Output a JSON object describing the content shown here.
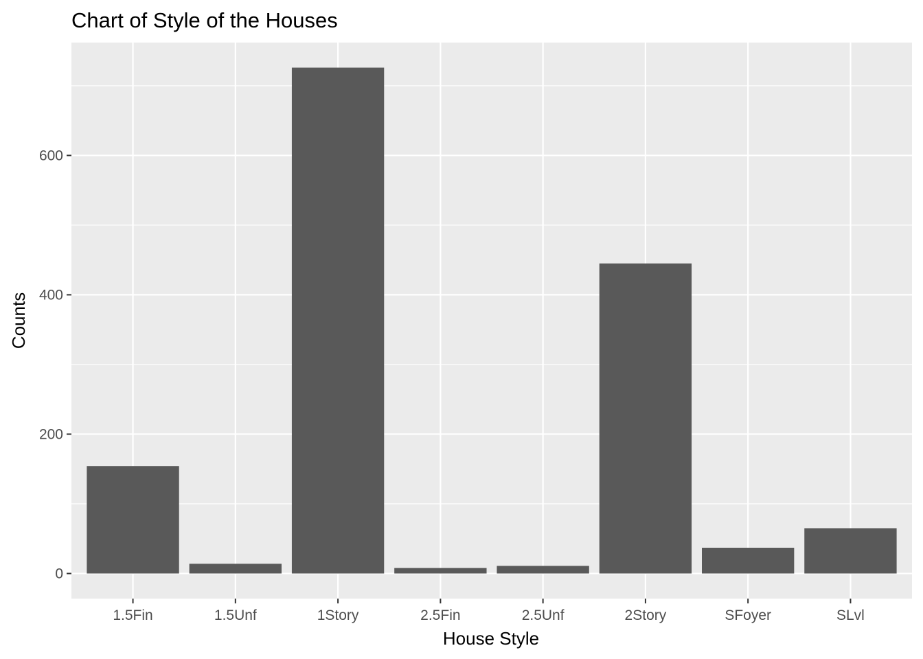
{
  "chart_data": {
    "type": "bar",
    "title": "Chart of Style of the Houses",
    "xlabel": "House Style",
    "ylabel": "Counts",
    "categories": [
      "1.5Fin",
      "1.5Unf",
      "1Story",
      "2.5Fin",
      "2.5Unf",
      "2Story",
      "SFoyer",
      "SLvl"
    ],
    "values": [
      154,
      14,
      726,
      8,
      11,
      445,
      37,
      65
    ],
    "ylim": [
      -36,
      762
    ],
    "yticks": [
      0,
      200,
      400,
      600
    ],
    "ytick_labels": [
      "0",
      "200",
      "400",
      "600"
    ],
    "grid": true,
    "legend": "none",
    "colors": {
      "bar": "#595959",
      "panel": "#ebebeb",
      "grid": "#ffffff",
      "tick_text": "#4d4d4d",
      "tick_mark": "#333333"
    }
  }
}
